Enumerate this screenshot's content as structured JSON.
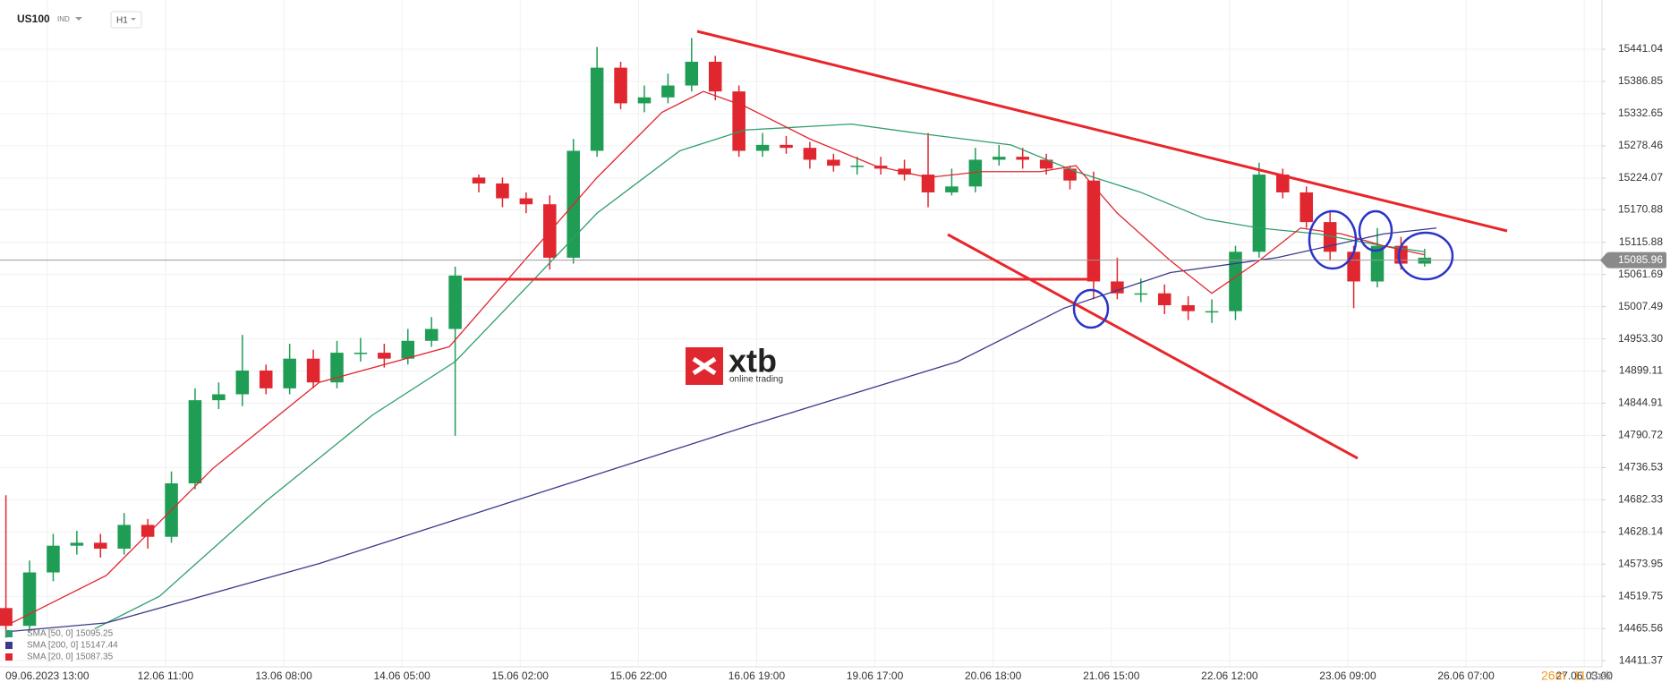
{
  "header": {
    "symbol": "US100",
    "market": "IND",
    "interval": "H1"
  },
  "logo": {
    "name": "xtb",
    "tagline": "online trading"
  },
  "timer": {
    "minutes": "26m",
    "seconds": "11",
    "unit": "Sek"
  },
  "chart_data": {
    "type": "candlestick",
    "x": [
      0,
      4,
      8,
      12,
      16,
      20,
      24,
      28,
      32,
      36,
      40,
      44,
      48,
      52,
      56,
      60,
      64,
      68,
      72,
      76,
      80,
      84,
      88,
      92,
      96,
      100,
      104,
      108,
      112,
      116,
      120,
      124,
      128,
      132,
      136,
      140,
      144,
      148,
      152,
      156,
      160,
      164,
      168,
      172,
      176,
      180,
      184,
      188,
      192,
      196,
      200,
      204,
      208,
      212,
      216,
      220,
      224,
      228,
      232,
      236,
      240
    ],
    "open": [
      14500,
      14470,
      14560,
      14605,
      14610,
      14600,
      14640,
      14620,
      14710,
      14850,
      14860,
      14900,
      14870,
      14920,
      14880,
      14930,
      14930,
      14920,
      14950,
      14970,
      15225,
      15215,
      15190,
      15180,
      15090,
      15270,
      15410,
      15350,
      15360,
      15380,
      15420,
      15370,
      15270,
      15280,
      15275,
      15255,
      15245,
      15245,
      15240,
      15230,
      15200,
      15210,
      15255,
      15260,
      15255,
      15240,
      15220,
      15050,
      15030,
      15030,
      15010,
      15000,
      15000,
      15100,
      15230,
      15200,
      15150,
      15100,
      15050,
      15110,
      15080
    ],
    "high": [
      14690,
      14580,
      14625,
      14630,
      14625,
      14660,
      14650,
      14730,
      14870,
      14880,
      14960,
      14910,
      14945,
      14935,
      14950,
      14955,
      14945,
      14970,
      14990,
      15075,
      15230,
      15225,
      15200,
      15195,
      15290,
      15445,
      15420,
      15380,
      15400,
      15460,
      15430,
      15380,
      15300,
      15295,
      15285,
      15265,
      15260,
      15260,
      15255,
      15300,
      15240,
      15275,
      15280,
      15275,
      15265,
      15245,
      15235,
      15090,
      15055,
      15045,
      15025,
      15020,
      15110,
      15250,
      15240,
      15210,
      15170,
      15110,
      15140,
      15125,
      15105
    ],
    "low": [
      14450,
      14460,
      14545,
      14590,
      14585,
      14590,
      14600,
      14610,
      14700,
      14835,
      14840,
      14860,
      14860,
      14870,
      14870,
      14915,
      14905,
      14910,
      14940,
      14790,
      15200,
      15175,
      15165,
      15070,
      15080,
      15260,
      15340,
      15335,
      15350,
      15370,
      15355,
      15260,
      15260,
      15265,
      15240,
      15235,
      15230,
      15230,
      15220,
      15175,
      15195,
      15200,
      15245,
      15240,
      15230,
      15205,
      15020,
      15020,
      15015,
      14995,
      14985,
      14980,
      14985,
      15090,
      15190,
      15140,
      15085,
      15005,
      15040,
      15070,
      15075
    ],
    "close": [
      14470,
      14560,
      14605,
      14610,
      14600,
      14640,
      14620,
      14710,
      14850,
      14860,
      14900,
      14870,
      14920,
      14880,
      14930,
      14930,
      14920,
      14950,
      14970,
      15060,
      15215,
      15190,
      15180,
      15090,
      15270,
      15410,
      15350,
      15360,
      15380,
      15420,
      15370,
      15270,
      15280,
      15275,
      15255,
      15245,
      15245,
      15240,
      15230,
      15200,
      15210,
      15255,
      15260,
      15255,
      15240,
      15220,
      15050,
      15030,
      15030,
      15010,
      15000,
      15000,
      15100,
      15230,
      15200,
      15150,
      15100,
      15050,
      15110,
      15080,
      15090
    ],
    "up_color": "#1f9d55",
    "down_color": "#e0262f",
    "overlays": [
      {
        "name": "SMA [50, 0] 15095.25",
        "color": "#2e9e6a",
        "x": [
          15,
          26,
          44,
          62,
          76,
          89,
          100,
          114,
          125,
          143,
          154,
          170,
          181,
          192,
          203,
          212,
          222,
          233,
          240
        ],
        "values": [
          14465,
          14520,
          14680,
          14825,
          14915,
          15050,
          15165,
          15270,
          15305,
          15315,
          15300,
          15280,
          15235,
          15200,
          15155,
          15140,
          15130,
          15110,
          15100
        ]
      },
      {
        "name": "SMA [200, 0] 15147.44",
        "color": "#3a3a8c",
        "x": [
          0,
          17,
          53,
          89,
          125,
          161,
          179,
          197,
          215,
          233,
          242
        ],
        "values": [
          14460,
          14475,
          14575,
          14690,
          14805,
          14915,
          15005,
          15065,
          15090,
          15130,
          15140
        ]
      },
      {
        "name": "SMA [20, 0] 15087.35",
        "color": "#e0262f",
        "x": [
          0,
          17,
          35,
          53,
          75,
          82,
          89,
          100,
          111,
          118,
          125,
          136,
          147,
          156,
          165,
          175,
          181,
          188,
          197,
          204,
          212,
          219,
          226,
          233,
          240
        ],
        "values": [
          14470,
          14555,
          14735,
          14880,
          14940,
          15020,
          15100,
          15225,
          15335,
          15370,
          15345,
          15290,
          15245,
          15225,
          15235,
          15235,
          15245,
          15165,
          15085,
          15030,
          15085,
          15140,
          15130,
          15110,
          15095
        ]
      }
    ],
    "current_price": 15085.96,
    "xlim": [
      -1,
      270
    ],
    "ylim": [
      14401,
      15524
    ],
    "xticks": [
      {
        "value": 7,
        "label": "09.06.2023 13:00"
      },
      {
        "value": 27,
        "label": "12.06 11:00"
      },
      {
        "value": 47,
        "label": "13.06 08:00"
      },
      {
        "value": 67,
        "label": "14.06 05:00"
      },
      {
        "value": 87,
        "label": "15.06 02:00"
      },
      {
        "value": 107,
        "label": "15.06 22:00"
      },
      {
        "value": 127,
        "label": "16.06 19:00"
      },
      {
        "value": 147,
        "label": "19.06 17:00"
      },
      {
        "value": 167,
        "label": "20.06 18:00"
      },
      {
        "value": 187,
        "label": "21.06 15:00"
      },
      {
        "value": 207,
        "label": "22.06 12:00"
      },
      {
        "value": 227,
        "label": "23.06 09:00"
      },
      {
        "value": 247,
        "label": "26.06 07:00"
      },
      {
        "value": 267,
        "label": "27.06 03:00"
      }
    ],
    "yticks": [
      15441.04,
      15386.85,
      15332.65,
      15278.46,
      15224.07,
      15170.88,
      15115.88,
      15061.69,
      15007.49,
      {
        "value": 14953.3,
        "label": "14953.30"
      },
      14899.11,
      14844.91,
      14790.72,
      14736.53,
      14682.33,
      14628.14,
      14573.95,
      14519.75,
      14465.56,
      14411.37
    ],
    "grid": true
  }
}
